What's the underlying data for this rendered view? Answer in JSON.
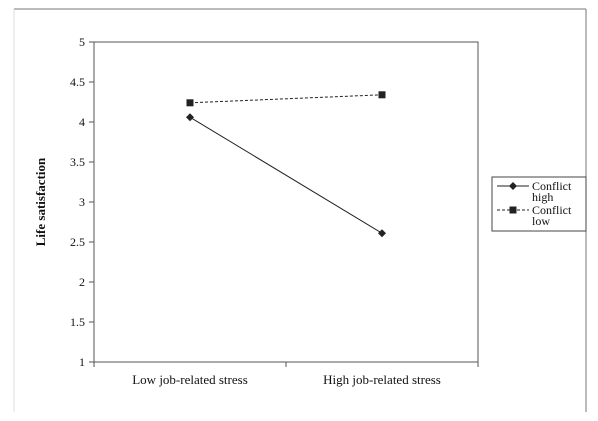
{
  "chart_data": {
    "type": "line",
    "title": "",
    "xlabel": "",
    "ylabel": "Life satisfaction",
    "categories": [
      "Low job-related stress",
      "High job-related stress"
    ],
    "ylim": [
      1,
      5
    ],
    "yticks": [
      "1",
      "1.5",
      "2",
      "2.5",
      "3",
      "3.5",
      "4",
      "4.5",
      "5"
    ],
    "grid": false,
    "legend_position": "right",
    "series": [
      {
        "name": "Conflict high",
        "name_lines": [
          "Conflict",
          "high"
        ],
        "values": [
          4.06,
          2.61
        ],
        "marker": "diamond",
        "dash": "solid",
        "color": "#222222"
      },
      {
        "name": "Conflict low",
        "name_lines": [
          "Conflict",
          "low"
        ],
        "values": [
          4.24,
          4.34
        ],
        "marker": "square",
        "dash": "dashed",
        "color": "#222222"
      }
    ]
  }
}
